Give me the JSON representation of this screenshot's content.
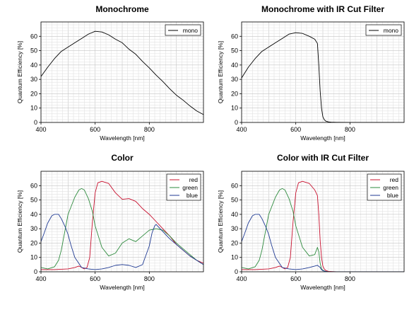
{
  "chart_data": [
    {
      "type": "line",
      "title": "Monochrome",
      "xlabel": "Wavelength [nm]",
      "ylabel": "Quantum Efficiency [%]",
      "xlim": [
        400,
        1000
      ],
      "ylim": [
        0,
        70
      ],
      "xticks": [
        400,
        600,
        800
      ],
      "yticks": [
        0,
        10,
        20,
        30,
        40,
        50,
        60
      ],
      "grid": true,
      "legend": "top-right",
      "series": [
        {
          "name": "mono",
          "color": "#000000",
          "x": [
            400,
            425,
            450,
            475,
            500,
            525,
            550,
            575,
            600,
            625,
            650,
            675,
            700,
            725,
            750,
            775,
            800,
            825,
            850,
            875,
            900,
            925,
            950,
            975,
            1000
          ],
          "y": [
            32,
            38.5,
            44.5,
            49.5,
            52.5,
            55.5,
            58.5,
            61.5,
            63.5,
            63,
            61,
            58,
            55.5,
            51,
            47.5,
            42.5,
            38,
            33,
            28.5,
            23.5,
            19,
            15.5,
            11.5,
            8,
            5.5
          ]
        }
      ]
    },
    {
      "type": "line",
      "title": "Monochrome with IR Cut Filter",
      "xlabel": "Wavelength [nm]",
      "ylabel": "Quantum Efficiency [%]",
      "xlim": [
        400,
        1000
      ],
      "ylim": [
        0,
        70
      ],
      "xticks": [
        400,
        600,
        800
      ],
      "yticks": [
        0,
        10,
        20,
        30,
        40,
        50,
        60
      ],
      "grid": true,
      "legend": "top-right",
      "series": [
        {
          "name": "mono",
          "color": "#000000",
          "x": [
            400,
            425,
            450,
            475,
            500,
            525,
            550,
            575,
            600,
            625,
            650,
            670,
            680,
            685,
            690,
            695,
            700,
            705,
            710,
            720,
            730,
            750,
            800,
            850,
            900,
            950,
            1000
          ],
          "y": [
            31,
            38.5,
            44.5,
            49.5,
            52.5,
            55.5,
            58.5,
            61.5,
            62.5,
            62,
            60,
            58,
            55,
            40,
            22,
            10,
            4,
            2,
            1,
            0.4,
            0.2,
            0.1,
            0,
            0,
            0,
            0,
            0
          ]
        }
      ]
    },
    {
      "type": "line",
      "title": "Color",
      "xlabel": "Wavelength [nm]",
      "ylabel": "Quantum Efficiency [%]",
      "xlim": [
        400,
        1000
      ],
      "ylim": [
        0,
        70
      ],
      "xticks": [
        400,
        600,
        800
      ],
      "yticks": [
        0,
        10,
        20,
        30,
        40,
        50,
        60
      ],
      "grid": true,
      "legend": "top-right",
      "series": [
        {
          "name": "red",
          "color": "#c8102e",
          "x": [
            400,
            450,
            500,
            525,
            540,
            550,
            560,
            570,
            580,
            590,
            600,
            610,
            625,
            650,
            675,
            700,
            725,
            750,
            775,
            800,
            825,
            850,
            875,
            900,
            925,
            950,
            975,
            1000
          ],
          "y": [
            1.5,
            1.5,
            2,
            3,
            4,
            3,
            2,
            3,
            10,
            35,
            55,
            62,
            63,
            61.5,
            55,
            50.5,
            51,
            49,
            44,
            40,
            35,
            30,
            25,
            19,
            15,
            11,
            8,
            6
          ]
        },
        {
          "name": "green",
          "color": "#2e8b3e",
          "x": [
            400,
            425,
            450,
            465,
            475,
            490,
            500,
            525,
            540,
            550,
            560,
            575,
            590,
            600,
            625,
            650,
            675,
            700,
            725,
            750,
            775,
            800,
            825,
            850,
            875,
            900,
            925,
            950,
            975,
            1000
          ],
          "y": [
            3,
            2,
            3.5,
            8,
            15,
            30,
            40,
            52,
            57,
            58,
            57,
            51,
            42,
            32,
            17,
            11,
            13,
            20,
            23,
            21,
            25,
            29,
            30,
            29,
            25,
            20,
            16,
            12,
            8,
            5
          ]
        },
        {
          "name": "blue",
          "color": "#1f3a93",
          "x": [
            400,
            410,
            425,
            440,
            450,
            465,
            475,
            490,
            500,
            510,
            525,
            550,
            575,
            600,
            625,
            650,
            675,
            700,
            725,
            750,
            775,
            800,
            810,
            820,
            825,
            850,
            875,
            900,
            925,
            950,
            975,
            1000
          ],
          "y": [
            21,
            26,
            34,
            39,
            40,
            40,
            37,
            31,
            26,
            19,
            10,
            3,
            2,
            1.5,
            2,
            3,
            4.5,
            5,
            4.5,
            3,
            5,
            18,
            27,
            32,
            33,
            28,
            23,
            19,
            15,
            11,
            8,
            5
          ]
        }
      ]
    },
    {
      "type": "line",
      "title": "Color with IR Cut Filter",
      "xlabel": "Wavelength [nm]",
      "ylabel": "Quantum Efficiency [%]",
      "xlim": [
        400,
        1000
      ],
      "ylim": [
        0,
        70
      ],
      "xticks": [
        400,
        600,
        800
      ],
      "yticks": [
        0,
        10,
        20,
        30,
        40,
        50,
        60
      ],
      "grid": true,
      "legend": "top-right",
      "series": [
        {
          "name": "red",
          "color": "#c8102e",
          "x": [
            400,
            450,
            500,
            525,
            540,
            550,
            560,
            570,
            580,
            590,
            600,
            610,
            625,
            650,
            670,
            680,
            685,
            690,
            695,
            700,
            705,
            710,
            720,
            750,
            800,
            900,
            1000
          ],
          "y": [
            1.5,
            1.5,
            2,
            3,
            4,
            3,
            2,
            3,
            10,
            35,
            55,
            62,
            63,
            61.5,
            57,
            53,
            40,
            22,
            10,
            4,
            2,
            1,
            0.3,
            0,
            0,
            0,
            0
          ]
        },
        {
          "name": "green",
          "color": "#2e8b3e",
          "x": [
            400,
            425,
            450,
            465,
            475,
            490,
            500,
            525,
            540,
            550,
            560,
            575,
            590,
            600,
            625,
            650,
            670,
            680,
            685,
            690,
            695,
            700,
            710,
            720,
            750,
            800,
            900,
            1000
          ],
          "y": [
            3,
            2,
            3.5,
            8,
            15,
            30,
            40,
            52,
            57,
            58,
            57,
            51,
            42,
            32,
            17,
            11,
            12,
            17,
            14,
            6,
            2,
            1,
            0.3,
            0,
            0,
            0,
            0,
            0
          ]
        },
        {
          "name": "blue",
          "color": "#1f3a93",
          "x": [
            400,
            410,
            425,
            440,
            450,
            465,
            475,
            490,
            500,
            510,
            525,
            550,
            575,
            600,
            625,
            650,
            670,
            680,
            690,
            695,
            700,
            710,
            720,
            750,
            800,
            900,
            1000
          ],
          "y": [
            21,
            26,
            34,
            39,
            40,
            40,
            37,
            31,
            26,
            19,
            10,
            3,
            2,
            1.5,
            2,
            3,
            4,
            4.5,
            3,
            1.5,
            0.8,
            0.3,
            0,
            0,
            0,
            0,
            0
          ]
        }
      ]
    }
  ]
}
